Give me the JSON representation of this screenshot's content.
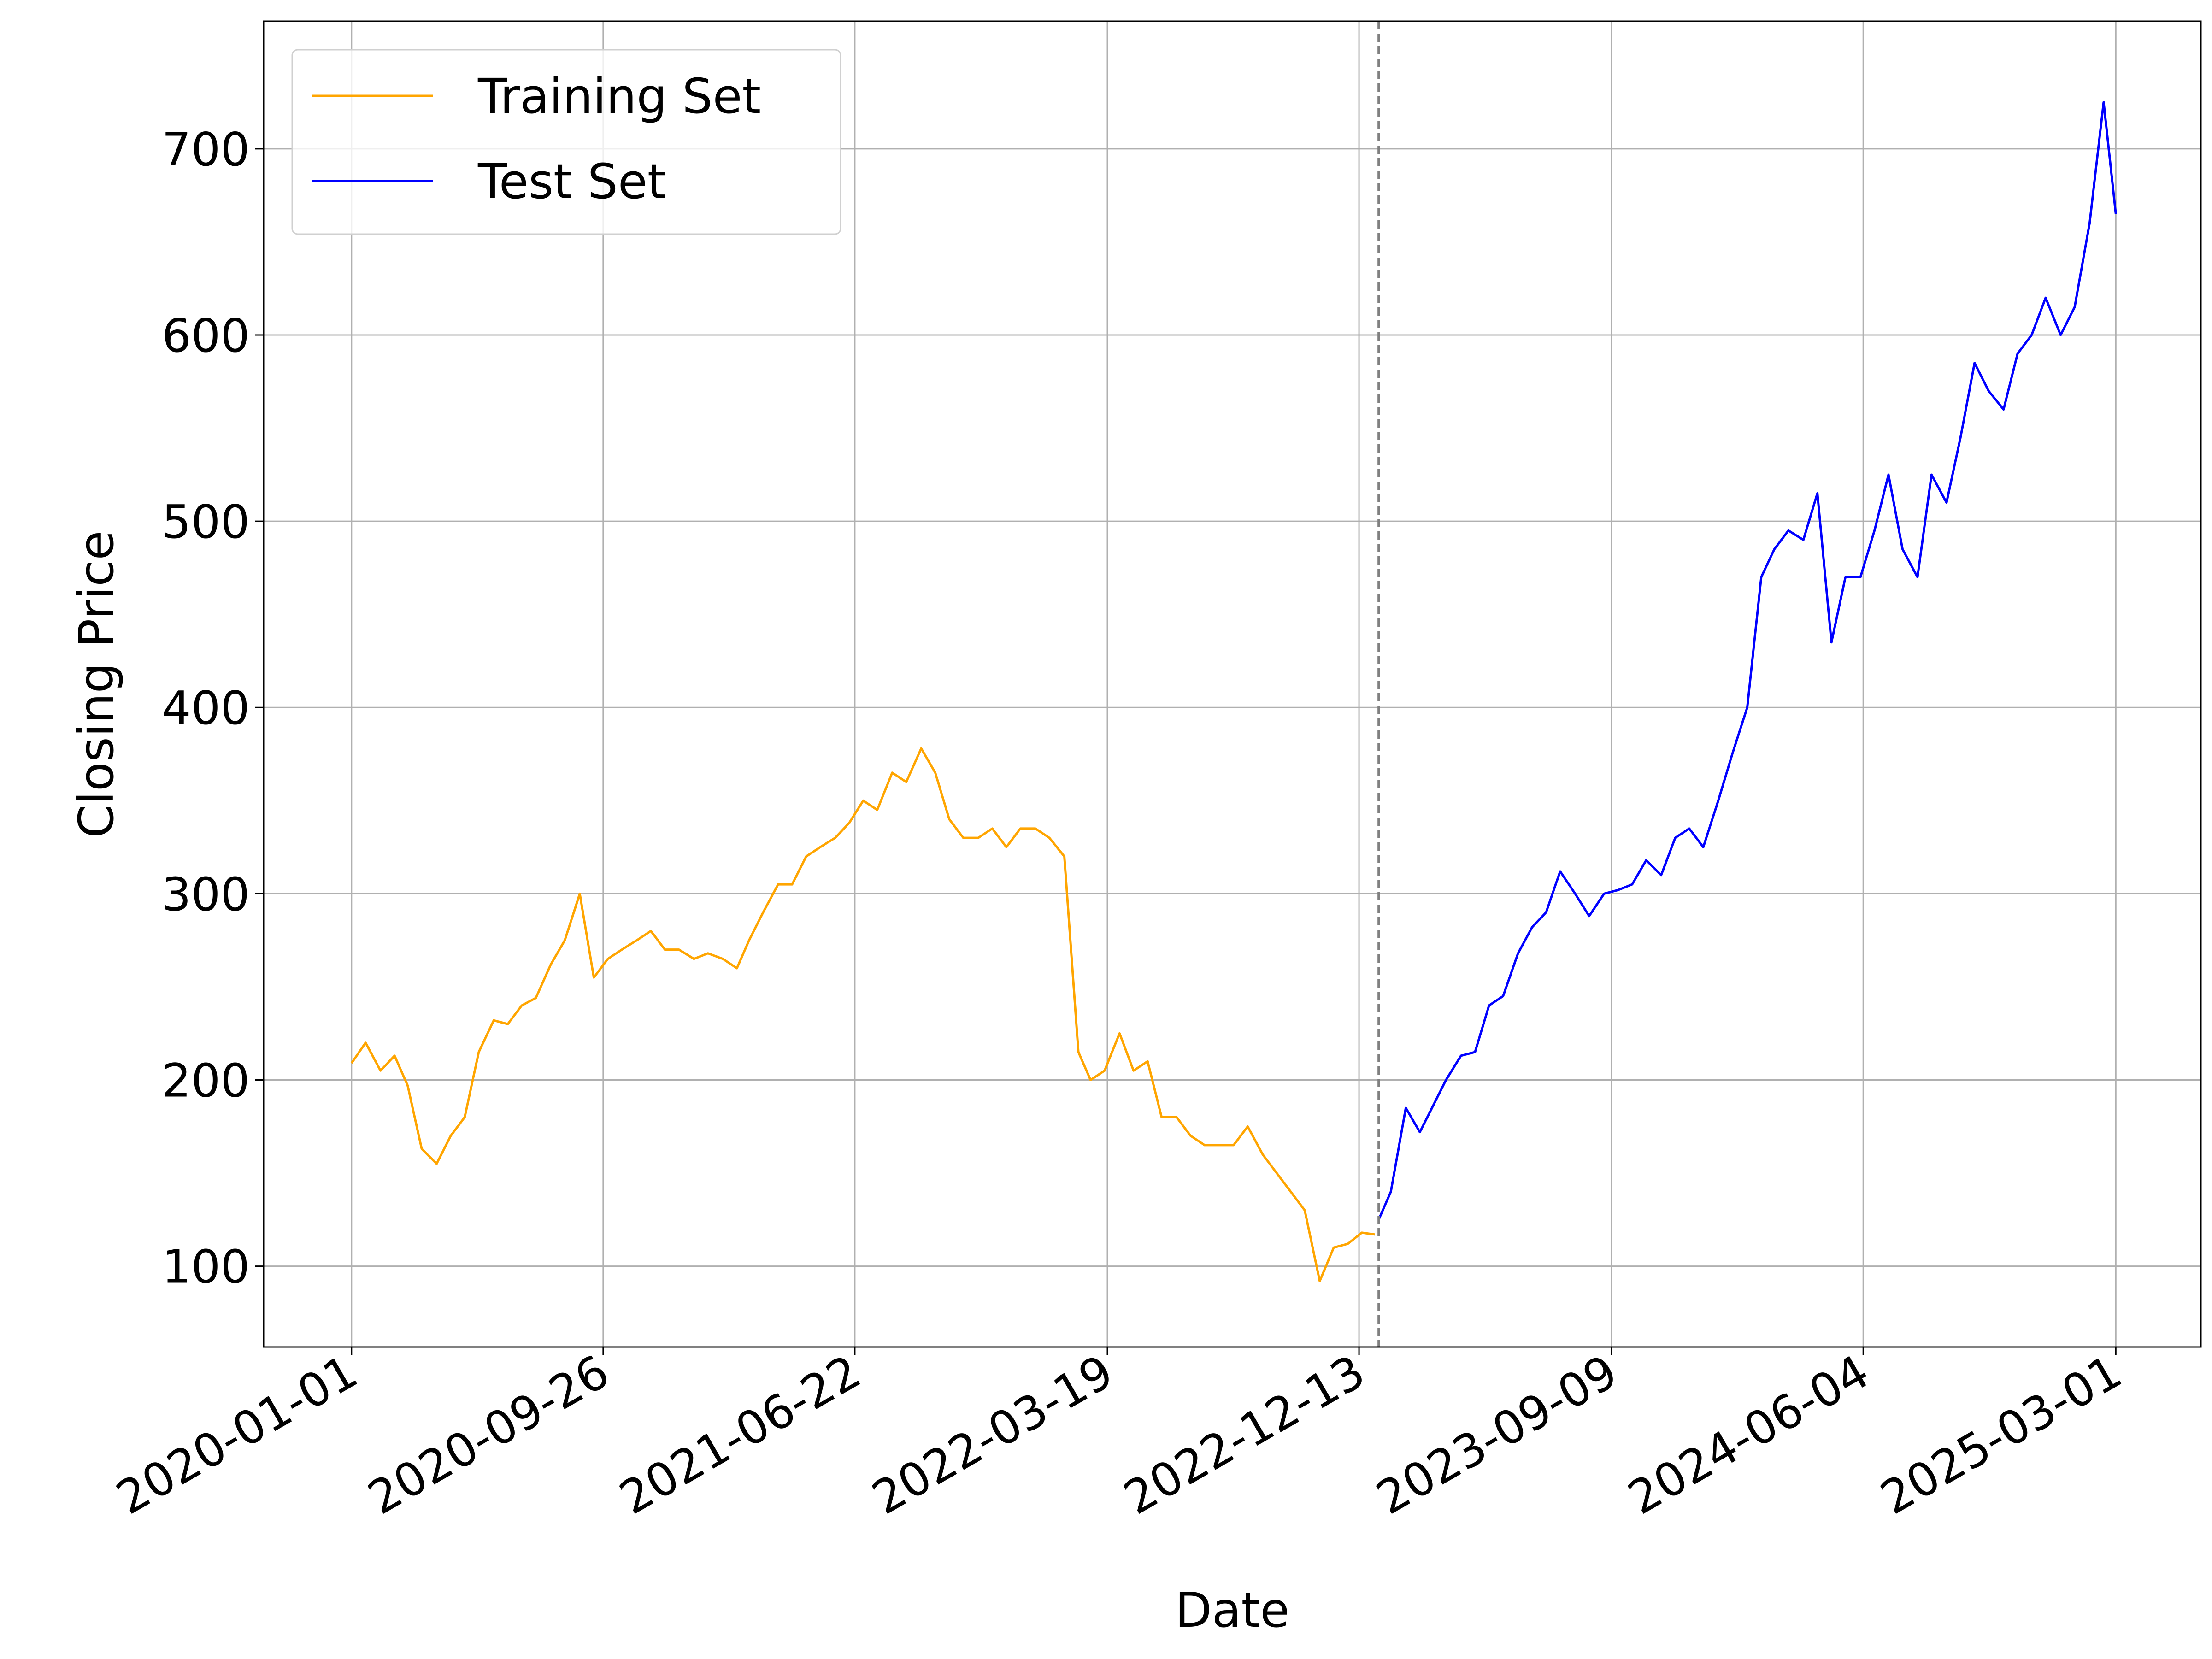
{
  "chart_data": {
    "type": "line",
    "xlabel": "Date",
    "ylabel": "Closing Price",
    "xlim": [
      "2019-09-29",
      "2025-05-31"
    ],
    "xticks": [
      "2020-01-01",
      "2020-09-26",
      "2021-06-22",
      "2022-03-19",
      "2022-12-13",
      "2023-09-09",
      "2024-06-04",
      "2025-03-01"
    ],
    "ylim": [
      56.6,
      768.5
    ],
    "yticks": [
      100,
      200,
      300,
      400,
      500,
      600,
      700
    ],
    "grid": true,
    "legend": "upper left",
    "series": [
      {
        "name": "Training Set",
        "color": "#ffa500",
        "x": [
          "2020-01-01",
          "2020-01-16",
          "2020-02-01",
          "2020-02-16",
          "2020-03-01",
          "2020-03-16",
          "2020-04-01",
          "2020-04-16",
          "2020-05-01",
          "2020-05-16",
          "2020-06-01",
          "2020-06-16",
          "2020-07-01",
          "2020-07-16",
          "2020-08-01",
          "2020-08-16",
          "2020-09-01",
          "2020-09-16",
          "2020-10-01",
          "2020-10-16",
          "2020-11-01",
          "2020-11-16",
          "2020-12-01",
          "2020-12-16",
          "2021-01-01",
          "2021-01-16",
          "2021-02-01",
          "2021-02-16",
          "2021-03-01",
          "2021-03-16",
          "2021-04-01",
          "2021-04-16",
          "2021-05-01",
          "2021-05-16",
          "2021-06-01",
          "2021-06-16",
          "2021-07-01",
          "2021-07-16",
          "2021-08-01",
          "2021-08-16",
          "2021-09-01",
          "2021-09-16",
          "2021-10-01",
          "2021-10-16",
          "2021-11-01",
          "2021-11-16",
          "2021-12-01",
          "2021-12-16",
          "2022-01-01",
          "2022-01-16",
          "2022-02-01",
          "2022-02-16",
          "2022-03-01",
          "2022-03-16",
          "2022-04-01",
          "2022-04-16",
          "2022-05-01",
          "2022-05-16",
          "2022-06-01",
          "2022-06-16",
          "2022-07-01",
          "2022-07-16",
          "2022-08-01",
          "2022-08-16",
          "2022-09-01",
          "2022-09-16",
          "2022-10-01",
          "2022-10-16",
          "2022-11-01",
          "2022-11-16",
          "2022-12-01",
          "2022-12-16",
          "2022-12-30"
        ],
        "values": [
          209,
          220,
          205,
          213,
          197,
          163,
          155,
          170,
          180,
          215,
          232,
          230,
          240,
          244,
          262,
          275,
          300,
          255,
          265,
          270,
          275,
          280,
          270,
          270,
          265,
          268,
          265,
          260,
          275,
          290,
          305,
          305,
          320,
          325,
          330,
          338,
          350,
          345,
          365,
          360,
          378,
          365,
          340,
          330,
          330,
          335,
          325,
          335,
          335,
          330,
          320,
          215,
          200,
          205,
          225,
          205,
          210,
          180,
          180,
          170,
          165,
          165,
          165,
          175,
          160,
          150,
          140,
          130,
          92,
          110,
          112,
          118,
          117
        ]
      },
      {
        "name": "Test Set",
        "color": "#0000ff",
        "x": [
          "2023-01-03",
          "2023-01-16",
          "2023-02-01",
          "2023-02-16",
          "2023-03-01",
          "2023-03-16",
          "2023-04-01",
          "2023-04-16",
          "2023-05-01",
          "2023-05-16",
          "2023-06-01",
          "2023-06-16",
          "2023-07-01",
          "2023-07-16",
          "2023-08-01",
          "2023-08-16",
          "2023-09-01",
          "2023-09-16",
          "2023-10-01",
          "2023-10-16",
          "2023-11-01",
          "2023-11-16",
          "2023-12-01",
          "2023-12-16",
          "2024-01-01",
          "2024-01-16",
          "2024-02-01",
          "2024-02-16",
          "2024-03-01",
          "2024-03-16",
          "2024-04-01",
          "2024-04-16",
          "2024-05-01",
          "2024-05-16",
          "2024-06-01",
          "2024-06-16",
          "2024-07-01",
          "2024-07-16",
          "2024-08-01",
          "2024-08-16",
          "2024-09-01",
          "2024-09-16",
          "2024-10-01",
          "2024-10-16",
          "2024-11-01",
          "2024-11-16",
          "2024-12-01",
          "2024-12-16",
          "2025-01-01",
          "2025-01-16",
          "2025-02-01",
          "2025-02-16",
          "2025-03-01"
        ],
        "values": [
          125,
          140,
          185,
          172,
          185,
          200,
          213,
          215,
          240,
          245,
          268,
          282,
          290,
          312,
          300,
          288,
          300,
          302,
          305,
          318,
          310,
          330,
          335,
          325,
          350,
          375,
          400,
          470,
          485,
          495,
          490,
          515,
          435,
          470,
          470,
          495,
          525,
          485,
          470,
          525,
          510,
          545,
          585,
          570,
          560,
          590,
          600,
          620,
          600,
          615,
          660,
          725,
          665
        ]
      }
    ]
  }
}
